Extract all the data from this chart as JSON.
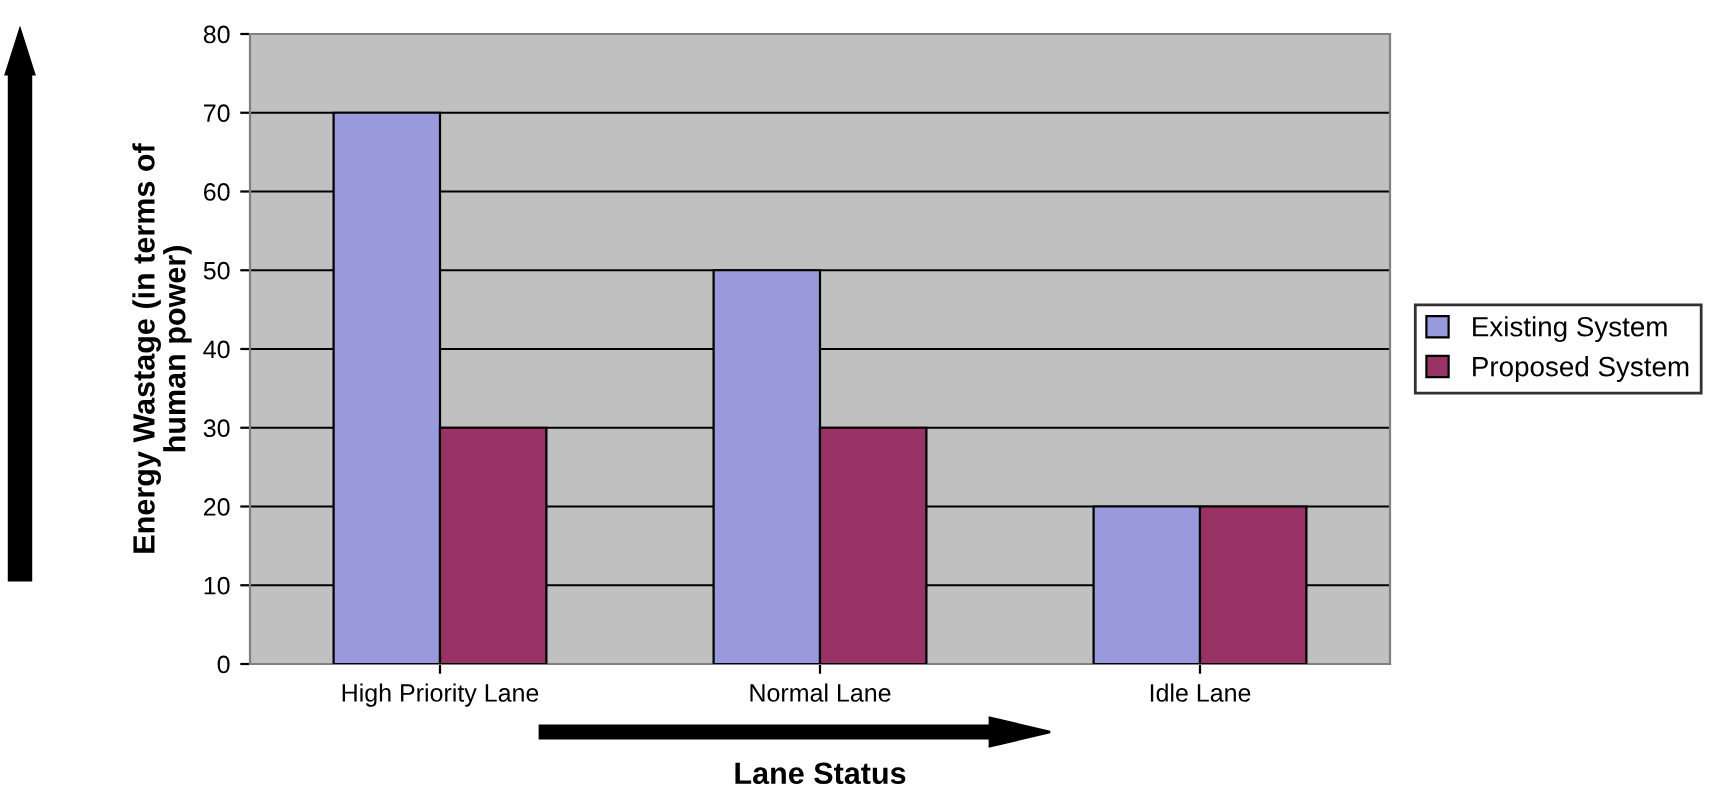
{
  "chart_data": {
    "type": "bar",
    "xlabel": "Lane Status",
    "ylabel": "Energy Wastage (in terms of\nhuman power)",
    "categories": [
      "High Priority Lane",
      "Normal Lane",
      "Idle Lane"
    ],
    "series": [
      {
        "name": "Existing System",
        "color": "#9999dd",
        "values": [
          70,
          50,
          20
        ]
      },
      {
        "name": "Proposed System",
        "color": "#993366",
        "values": [
          30,
          30,
          20
        ]
      }
    ],
    "ylim": [
      0,
      80
    ],
    "yticks": [
      0,
      10,
      20,
      30,
      40,
      50,
      60,
      70,
      80
    ],
    "grid": "y",
    "legend": "right"
  }
}
